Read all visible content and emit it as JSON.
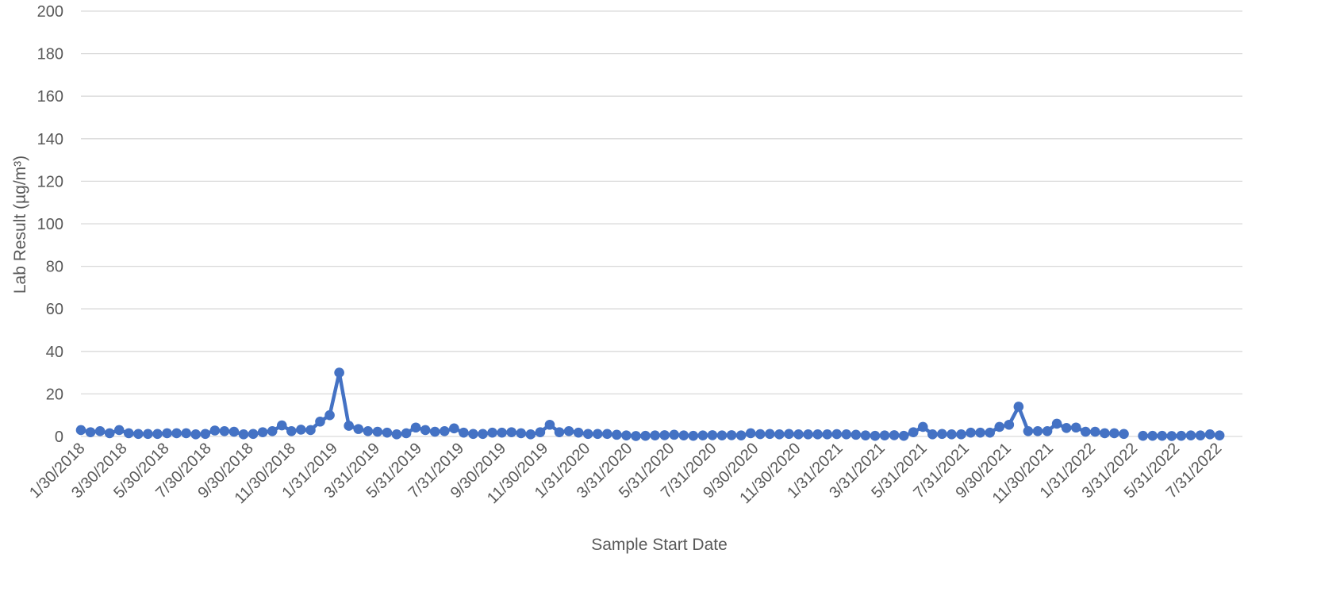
{
  "chart_data": {
    "type": "line",
    "title": "",
    "xlabel": "Sample Start Date",
    "ylabel": "Lab Result (µg/m³)",
    "ylim": [
      0,
      200
    ],
    "yticks": [
      0,
      20,
      40,
      60,
      80,
      100,
      120,
      140,
      160,
      180,
      200
    ],
    "grid": true,
    "legend": "none",
    "markers": true,
    "x_tick_labels": [
      "1/30/2018",
      "3/30/2018",
      "5/30/2018",
      "7/30/2018",
      "9/30/2018",
      "11/30/2018",
      "1/31/2019",
      "3/31/2019",
      "5/31/2019",
      "7/31/2019",
      "9/30/2019",
      "11/30/2019",
      "1/31/2020",
      "3/31/2020",
      "5/31/2020",
      "7/31/2020",
      "9/30/2020",
      "11/30/2020",
      "1/31/2021",
      "3/31/2021",
      "5/31/2021",
      "7/31/2021",
      "9/30/2021",
      "11/30/2021",
      "1/31/2022",
      "3/31/2022",
      "5/31/2022",
      "7/31/2022"
    ],
    "series": [
      {
        "color": "#4472c4",
        "values": [
          3,
          2,
          2.5,
          1.5,
          3,
          1.5,
          1.2,
          1.2,
          1.2,
          1.5,
          1.5,
          1.5,
          1,
          1.2,
          2.8,
          2.5,
          2.2,
          1,
          1.2,
          2,
          2.5,
          5.2,
          2.5,
          3.2,
          3,
          7,
          10,
          30,
          5,
          3.5,
          2.5,
          2.2,
          1.8,
          1,
          1.5,
          4.2,
          3,
          2.2,
          2.5,
          3.8,
          1.8,
          1.2,
          1.2,
          1.8,
          1.8,
          2,
          1.5,
          1,
          2,
          5.5,
          2,
          2.5,
          1.8,
          1.2,
          1.2,
          1.2,
          0.8,
          0.5,
          0.2,
          0.3,
          0.5,
          0.6,
          0.8,
          0.5,
          0.3,
          0.5,
          0.6,
          0.5,
          0.6,
          0.5,
          1.5,
          1.1,
          1.2,
          1,
          1.2,
          1,
          1,
          1,
          1,
          1.1,
          1,
          0.8,
          0.5,
          0.3,
          0.5,
          0.6,
          0.3,
          2,
          4.5,
          1,
          1.2,
          1,
          1,
          1.8,
          1.8,
          1.8,
          4.5,
          5.5,
          14,
          2.5,
          2.5,
          2.5,
          6,
          4,
          4.2,
          2.2,
          2.2,
          1.5,
          1.5,
          1.2,
          null,
          0.3,
          0.3,
          0.3,
          0.2,
          0.3,
          0.5,
          0.5,
          1,
          0.5
        ]
      }
    ]
  }
}
